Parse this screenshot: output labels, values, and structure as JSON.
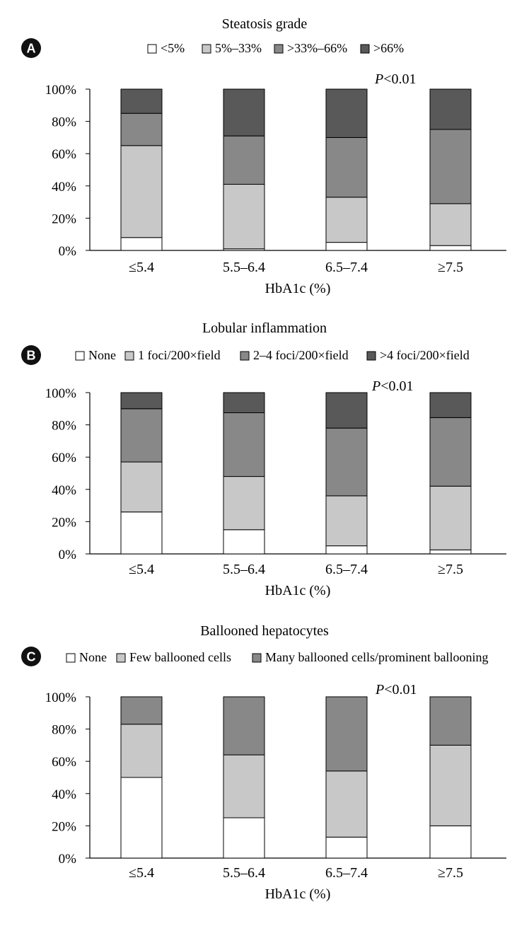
{
  "chart_data": [
    {
      "type": "bar",
      "stacked": true,
      "panel_letter": "A",
      "title": "Steatosis grade",
      "xlabel": "HbA1c (%)",
      "categories": [
        "≤5.4",
        "5.5–6.4",
        "6.5–7.4",
        "≥7.5"
      ],
      "yticks": [
        "0%",
        "20%",
        "40%",
        "60%",
        "80%",
        "100%"
      ],
      "ylim": [
        0,
        100
      ],
      "annotation": {
        "prefix": "P",
        "text": "<0.01"
      },
      "series": [
        {
          "name": "<5%",
          "values": [
            8,
            1,
            5,
            3
          ],
          "color": "#ffffff"
        },
        {
          "name": "5%–33%",
          "values": [
            57,
            40,
            28,
            26
          ],
          "color": "#c8c8c8"
        },
        {
          "name": ">33%–66%",
          "values": [
            20,
            30,
            37,
            46
          ],
          "color": "#888888"
        },
        {
          "name": ">66%",
          "values": [
            15,
            29,
            30,
            25
          ],
          "color": "#595959"
        }
      ]
    },
    {
      "type": "bar",
      "stacked": true,
      "panel_letter": "B",
      "title": "Lobular inflammation",
      "xlabel": "HbA1c (%)",
      "categories": [
        "≤5.4",
        "5.5–6.4",
        "6.5–7.4",
        "≥7.5"
      ],
      "yticks": [
        "0%",
        "20%",
        "40%",
        "60%",
        "80%",
        "100%"
      ],
      "ylim": [
        0,
        100
      ],
      "annotation": {
        "prefix": "P",
        "text": "<0.01"
      },
      "series": [
        {
          "name": "None",
          "values": [
            26,
            15,
            5,
            2.5
          ],
          "color": "#ffffff"
        },
        {
          "name": "1 foci/200×field",
          "values": [
            31,
            33,
            31,
            39.5
          ],
          "color": "#c8c8c8"
        },
        {
          "name": "2–4 foci/200×field",
          "values": [
            33,
            39.5,
            42,
            42.5
          ],
          "color": "#888888"
        },
        {
          "name": ">4 foci/200×field",
          "values": [
            10,
            12.5,
            22,
            15.5
          ],
          "color": "#595959"
        }
      ]
    },
    {
      "type": "bar",
      "stacked": true,
      "panel_letter": "C",
      "title": "Ballooned hepatocytes",
      "xlabel": "HbA1c (%)",
      "categories": [
        "≤5.4",
        "5.5–6.4",
        "6.5–7.4",
        "≥7.5"
      ],
      "yticks": [
        "0%",
        "20%",
        "40%",
        "60%",
        "80%",
        "100%"
      ],
      "ylim": [
        0,
        100
      ],
      "annotation": {
        "prefix": "P",
        "text": "<0.01"
      },
      "series": [
        {
          "name": "None",
          "values": [
            50,
            25,
            13,
            20
          ],
          "color": "#ffffff"
        },
        {
          "name": "Few ballooned cells",
          "values": [
            33,
            39,
            41,
            50
          ],
          "color": "#c8c8c8"
        },
        {
          "name": "Many ballooned cells/prominent ballooning",
          "values": [
            17,
            36,
            46,
            30
          ],
          "color": "#888888"
        }
      ]
    }
  ]
}
